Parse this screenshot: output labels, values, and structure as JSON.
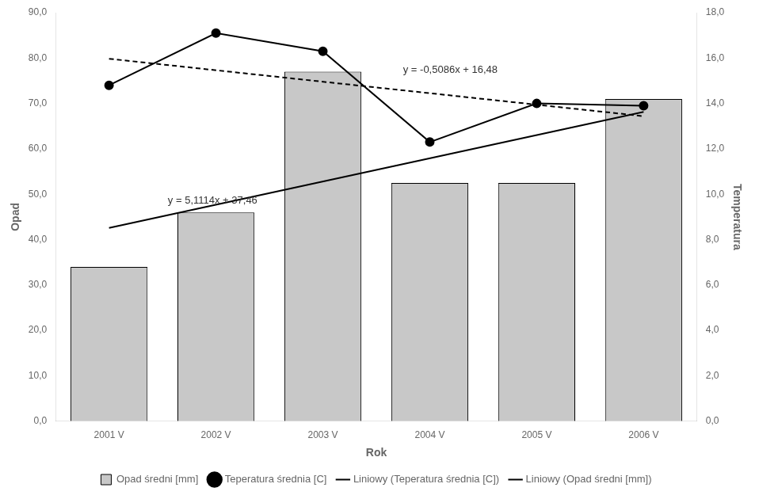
{
  "chart_data": {
    "type": "bar",
    "categories": [
      "2001 V",
      "2002 V",
      "2003 V",
      "2004 V",
      "2005 V",
      "2006 V"
    ],
    "series": [
      {
        "name": "Opad średni [mm]",
        "type": "bar",
        "color": "#c8c8c8",
        "axis": "y",
        "values": [
          34.0,
          46.0,
          77.0,
          52.5,
          52.5,
          71.0
        ]
      },
      {
        "name": "Teperatura średnia [C]",
        "type": "line",
        "color": "#000000",
        "axis": "y2",
        "marker": "circle",
        "line_style": "solid",
        "values": [
          14.8,
          17.1,
          16.3,
          12.3,
          14.0,
          13.9
        ]
      },
      {
        "name": "Liniowy (Teperatura średnia [C])",
        "type": "line",
        "color": "#000000",
        "axis": "y2",
        "line_style": "dashed",
        "x": [
          "2001 V",
          "2006 V"
        ],
        "values": [
          15.97,
          13.44
        ]
      },
      {
        "name": "Liniowy (Opad średni [mm])",
        "type": "line",
        "color": "#000000",
        "axis": "y",
        "line_style": "solid",
        "x": [
          "2001 V",
          "2006 V"
        ],
        "values": [
          42.57,
          68.13
        ]
      }
    ],
    "y_label": "Opad",
    "y2_label": "Temperatura",
    "x_label": "Rok",
    "ylim": [
      0,
      90
    ],
    "yticks": [
      {
        "value": 0,
        "label": "0,0"
      },
      {
        "value": 10,
        "label": "10,0"
      },
      {
        "value": 20,
        "label": "20,0"
      },
      {
        "value": 30,
        "label": "30,0"
      },
      {
        "value": 40,
        "label": "40,0"
      },
      {
        "value": 50,
        "label": "50,0"
      },
      {
        "value": 60,
        "label": "60,0"
      },
      {
        "value": 70,
        "label": "70,0"
      },
      {
        "value": 80,
        "label": "80,0"
      },
      {
        "value": 90,
        "label": "90,0"
      }
    ],
    "y2lim": [
      0,
      18
    ],
    "y2ticks": [
      {
        "value": 0,
        "label": "0,0"
      },
      {
        "value": 2,
        "label": "2,0"
      },
      {
        "value": 4,
        "label": "4,0"
      },
      {
        "value": 6,
        "label": "6,0"
      },
      {
        "value": 8,
        "label": "8,0"
      },
      {
        "value": 10,
        "label": "10,0"
      },
      {
        "value": 12,
        "label": "12,0"
      },
      {
        "value": 14,
        "label": "14,0"
      },
      {
        "value": 16,
        "label": "16,0"
      },
      {
        "value": 18,
        "label": "18,0"
      }
    ],
    "annotations": [
      {
        "text": "y = 5,1114x + 37,46",
        "x": 0.55,
        "y": 48.0,
        "axis": "y"
      },
      {
        "text": "y = -0,5086x + 16,48",
        "x": 2.75,
        "y": 15.35,
        "axis": "y2"
      }
    ],
    "grid": false,
    "legend": "bottom"
  }
}
